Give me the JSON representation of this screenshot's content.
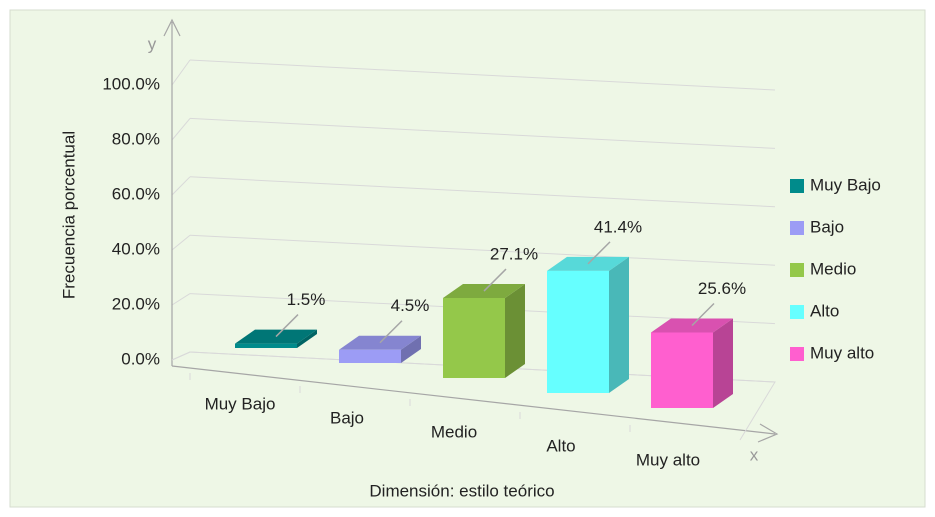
{
  "chart_data": {
    "type": "bar3d",
    "categories": [
      "Muy Bajo",
      "Bajo",
      "Medio",
      "Alto",
      "Muy alto"
    ],
    "values": [
      1.5,
      4.5,
      27.1,
      41.4,
      25.6
    ],
    "value_labels": [
      "1.5%",
      "4.5%",
      "27.1%",
      "41.4%",
      "25.6%"
    ],
    "colors": [
      "#008b8b",
      "#9c9cf5",
      "#94c84a",
      "#66ffff",
      "#ff5fcf"
    ],
    "ylim": [
      0,
      100
    ],
    "yticks": [
      {
        "value": 0,
        "label": "0.0%"
      },
      {
        "value": 20,
        "label": "20.0%"
      },
      {
        "value": 40,
        "label": "40.0%"
      },
      {
        "value": 60,
        "label": "60.0%"
      },
      {
        "value": 80,
        "label": "80.0%"
      },
      {
        "value": 100,
        "label": "100.0%"
      }
    ],
    "ylabel": "Frecuencia porcentual",
    "xlabel": "Dimensión: estilo teórico",
    "axis_letters": {
      "y": "y",
      "x": "x"
    },
    "grid": true,
    "legend": "right"
  }
}
